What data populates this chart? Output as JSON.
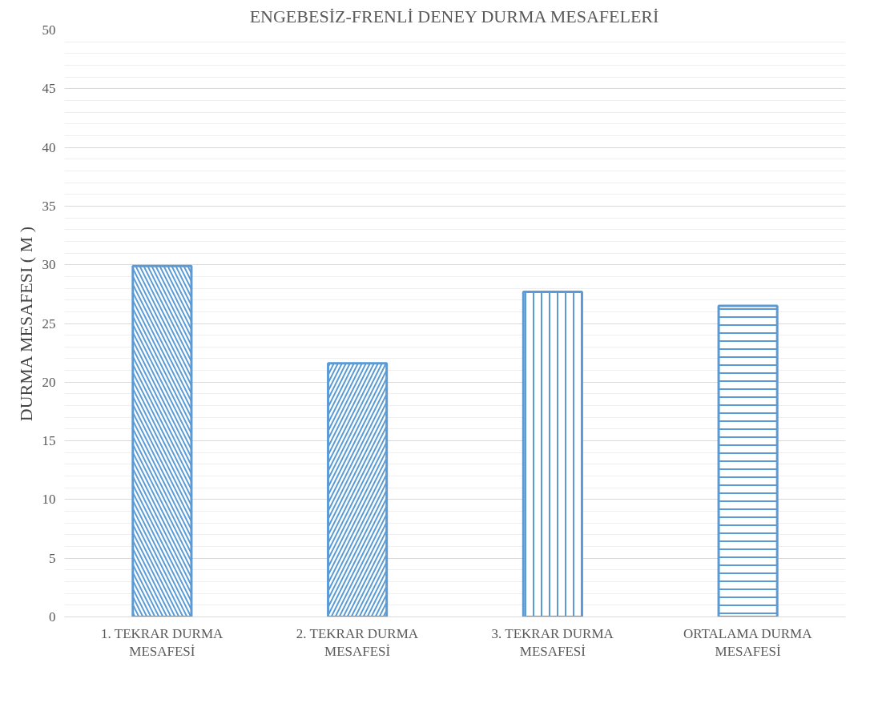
{
  "chart_data": {
    "type": "bar",
    "title": "ENGEBESİZ-FRENLİ DENEY DURMA MESAFELERİ",
    "ylabel": "DURMA MESAFESI ( M )",
    "categories": [
      "1. TEKRAR DURMA MESAFESİ",
      "2. TEKRAR DURMA MESAFESİ",
      "3. TEKRAR DURMA MESAFESİ",
      "ORTALAMA DURMA MESAFESİ"
    ],
    "values": [
      29.9,
      21.6,
      27.7,
      26.5
    ],
    "color": "#5b9bd5",
    "ylim": [
      0,
      50
    ],
    "yticks": [
      0,
      5,
      10,
      15,
      20,
      25,
      30,
      35,
      40,
      45,
      50
    ],
    "grid": "y"
  }
}
